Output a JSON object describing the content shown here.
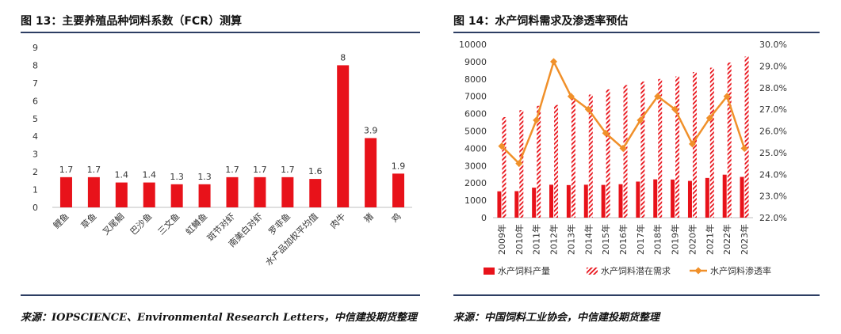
{
  "panel1": {
    "title": "图 13：主要养殖品种饲料系数（FCR）测算"
  },
  "panel2": {
    "title": "图 14：水产饲料需求及渗透率预估"
  },
  "source1": "来源：IOPSCIENCE、Environmental Research Letters，中信建投期货整理",
  "source2": "来源：中国饲料工业协会，中信建投期货整理",
  "colors": {
    "bar": "#e8121a",
    "line": "#f0902a",
    "rule": "#2d3e63"
  },
  "chart_data": [
    {
      "type": "bar",
      "categories": [
        "鲤鱼",
        "草鱼",
        "叉尾鮰",
        "巴沙鱼",
        "三文鱼",
        "虹鳟鱼",
        "斑节对虾",
        "南美白对虾",
        "罗非鱼",
        "水产品加权平均值",
        "肉牛",
        "猪",
        "鸡"
      ],
      "values": [
        1.7,
        1.7,
        1.4,
        1.4,
        1.3,
        1.3,
        1.7,
        1.7,
        1.7,
        1.6,
        8,
        3.9,
        1.9
      ],
      "data_labels": [
        "1.7",
        "1.7",
        "1.4",
        "1.4",
        "1.3",
        "1.3",
        "1.7",
        "1.7",
        "1.7",
        "1.6",
        "8",
        "3.9",
        "1.9"
      ],
      "yticks": [
        "0",
        "1",
        "2",
        "3",
        "4",
        "5",
        "6",
        "7",
        "8",
        "9"
      ],
      "ylim": [
        0,
        9
      ],
      "grid": false
    },
    {
      "type": "bar+line",
      "categories": [
        "2009年",
        "2010年",
        "2011年",
        "2012年",
        "2013年",
        "2014年",
        "2015年",
        "2016年",
        "2017年",
        "2018年",
        "2019年",
        "2020年",
        "2021年",
        "2022年",
        "2023年"
      ],
      "series": [
        {
          "name": "水产饲料产量",
          "type": "bar",
          "axis": "left",
          "values": [
            1520,
            1530,
            1730,
            1900,
            1880,
            1900,
            1890,
            1930,
            2080,
            2210,
            2200,
            2120,
            2290,
            2480,
            2350
          ]
        },
        {
          "name": "水产饲料潜在需求",
          "type": "bar-hatched",
          "axis": "left",
          "values": [
            5800,
            6200,
            6450,
            6500,
            6900,
            7100,
            7400,
            7650,
            7850,
            8000,
            8150,
            8400,
            8650,
            8950,
            9300
          ]
        },
        {
          "name": "水产饲料渗透率",
          "type": "line",
          "axis": "right",
          "values": [
            25.3,
            24.5,
            26.5,
            29.2,
            27.6,
            27.0,
            25.9,
            25.2,
            26.5,
            27.6,
            27.0,
            25.4,
            26.6,
            27.6,
            25.2
          ]
        }
      ],
      "yticks_left": [
        "0",
        "1000",
        "2000",
        "3000",
        "4000",
        "5000",
        "6000",
        "7000",
        "8000",
        "9000",
        "10000"
      ],
      "yticks_right": [
        "22.0%",
        "23.0%",
        "24.0%",
        "25.0%",
        "26.0%",
        "27.0%",
        "28.0%",
        "29.0%",
        "30.0%"
      ],
      "ylim_left": [
        0,
        10000
      ],
      "ylim_right": [
        22,
        30
      ],
      "legend_position": "bottom",
      "grid": false
    }
  ]
}
